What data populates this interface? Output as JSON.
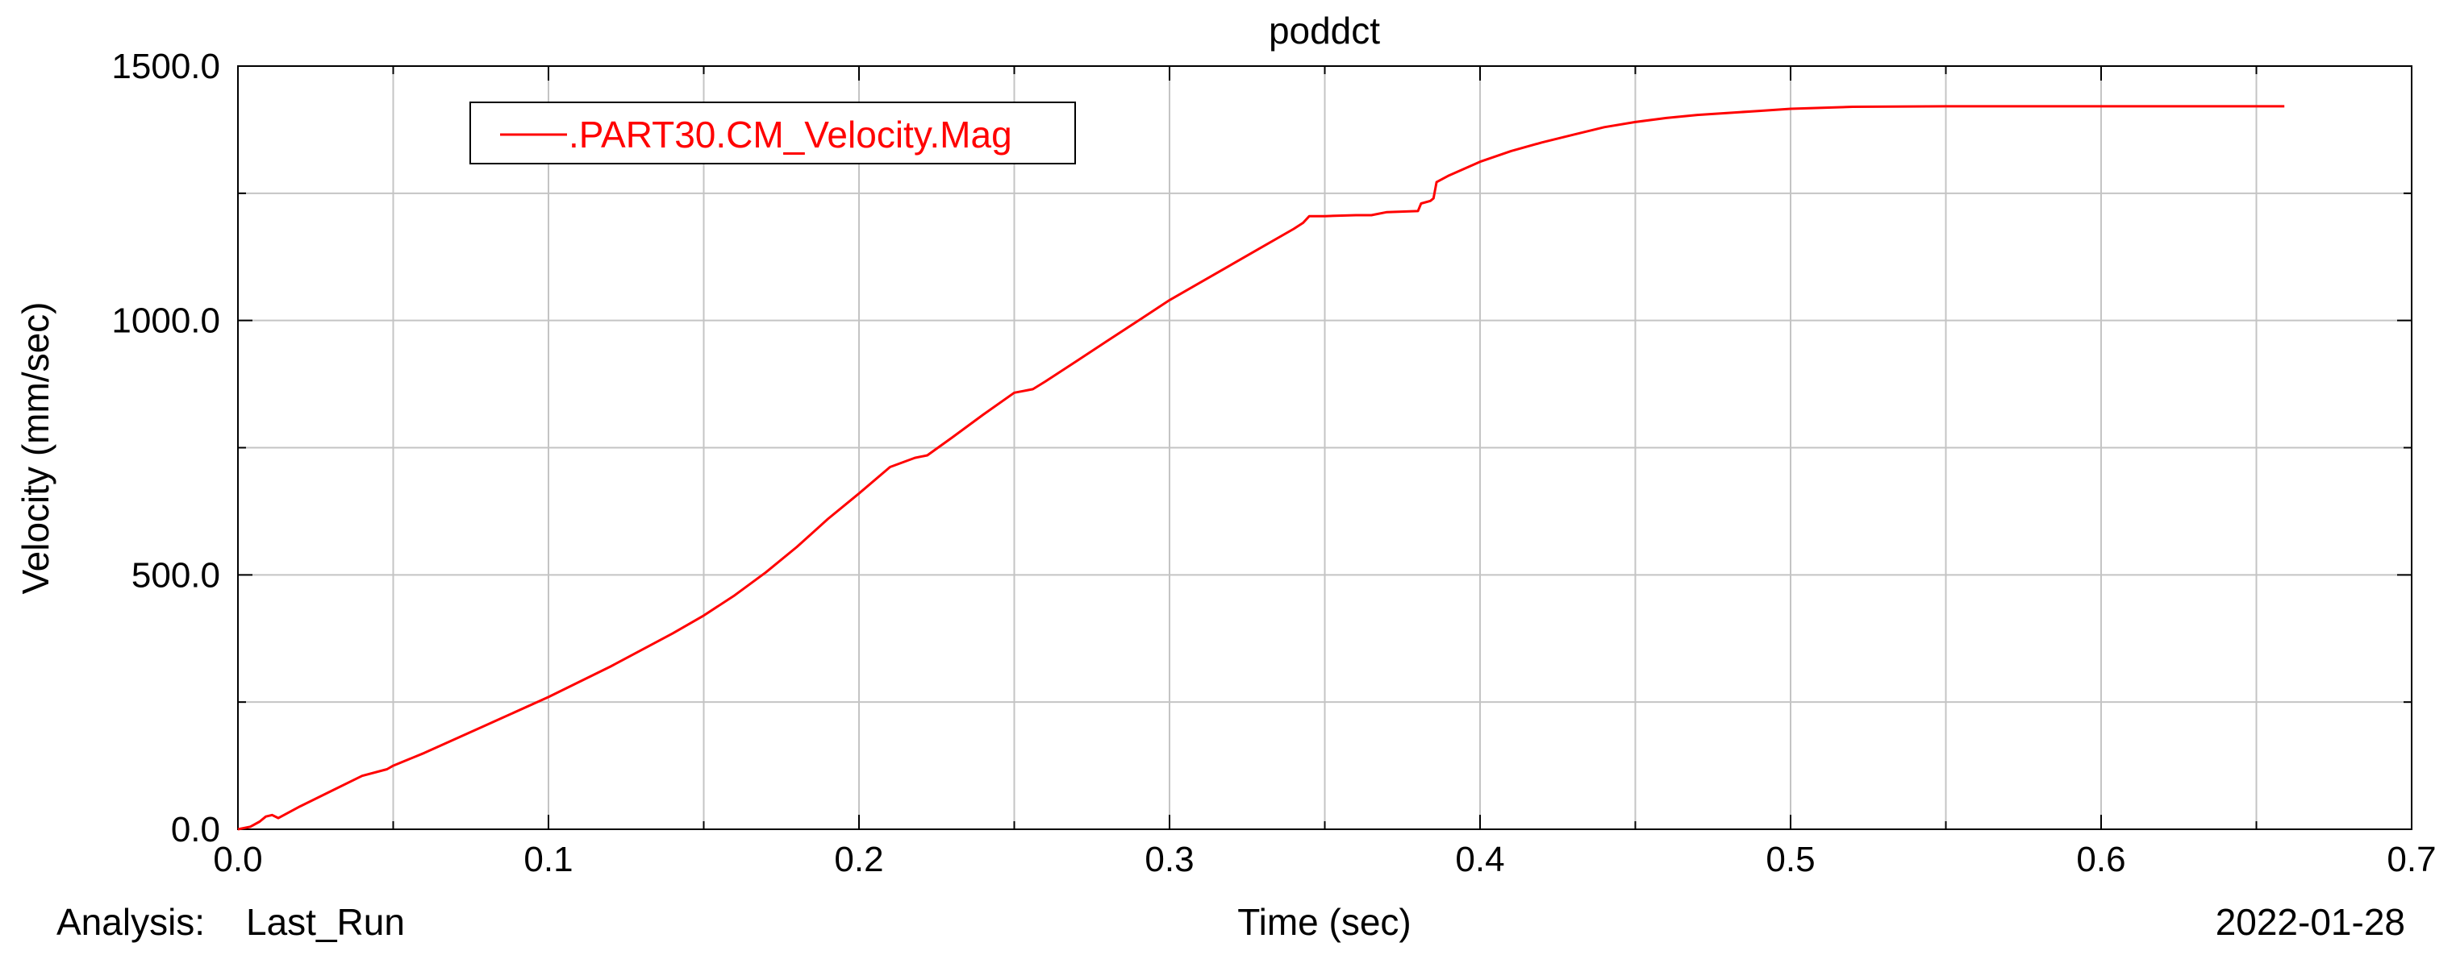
{
  "chart_data": {
    "type": "line",
    "title": "poddct",
    "xlabel": "Time (sec)",
    "ylabel": "Velocity (mm/sec)",
    "xlim": [
      0.0,
      0.7
    ],
    "ylim": [
      0.0,
      1500.0
    ],
    "xticks": [
      "0.0",
      "0.1",
      "0.2",
      "0.3",
      "0.4",
      "0.5",
      "0.6",
      "0.7"
    ],
    "yticks": [
      "0.0",
      "500.0",
      "1000.0",
      "1500.0"
    ],
    "grid": true,
    "legend_position": "top-left",
    "series": [
      {
        "name": ".PART30.CM_Velocity.Mag",
        "color": "#ff0000",
        "x": [
          0.0,
          0.004,
          0.007,
          0.009,
          0.011,
          0.013,
          0.02,
          0.03,
          0.04,
          0.048,
          0.05,
          0.06,
          0.08,
          0.1,
          0.12,
          0.14,
          0.15,
          0.16,
          0.17,
          0.18,
          0.19,
          0.2,
          0.21,
          0.218,
          0.222,
          0.23,
          0.24,
          0.25,
          0.256,
          0.26,
          0.27,
          0.28,
          0.29,
          0.3,
          0.31,
          0.32,
          0.33,
          0.34,
          0.343,
          0.345,
          0.35,
          0.36,
          0.365,
          0.37,
          0.38,
          0.381,
          0.384,
          0.385,
          0.386,
          0.39,
          0.4,
          0.41,
          0.42,
          0.43,
          0.44,
          0.45,
          0.46,
          0.47,
          0.48,
          0.49,
          0.5,
          0.52,
          0.55,
          0.6,
          0.659
        ],
        "values": [
          0,
          5,
          15,
          25,
          28,
          22,
          45,
          75,
          105,
          118,
          125,
          150,
          205,
          260,
          320,
          385,
          420,
          460,
          505,
          555,
          610,
          660,
          712,
          730,
          735,
          770,
          815,
          858,
          865,
          880,
          920,
          960,
          1000,
          1040,
          1075,
          1110,
          1145,
          1180,
          1192,
          1205,
          1205,
          1207,
          1207,
          1213,
          1215,
          1230,
          1235,
          1240,
          1272,
          1285,
          1312,
          1333,
          1350,
          1365,
          1380,
          1390,
          1398,
          1404,
          1408,
          1412,
          1416,
          1420,
          1421,
          1421,
          1421
        ]
      }
    ]
  },
  "footer": {
    "analysis_label": "Analysis:",
    "analysis_value": "Last_Run",
    "date": "2022-01-28"
  }
}
